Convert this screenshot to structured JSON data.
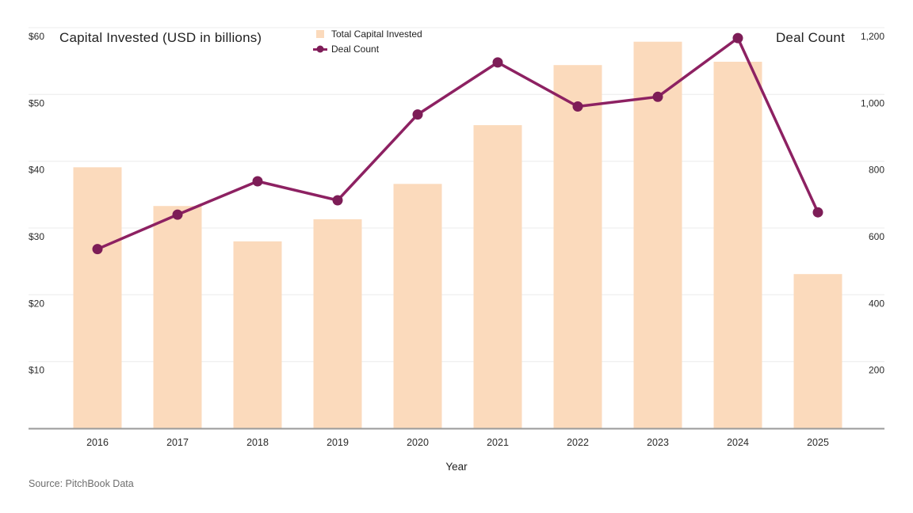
{
  "chart_data": {
    "type": "bar",
    "title": "Capital Invested (USD in billions)",
    "right_axis_title": "Deal Count",
    "xlabel": "Year",
    "source": "Source: PitchBook Data",
    "categories": [
      "2016",
      "2017",
      "2018",
      "2019",
      "2020",
      "2021",
      "2022",
      "2023",
      "2024",
      "2025"
    ],
    "series": [
      {
        "name": "Total Capital Invested",
        "type": "bar",
        "axis": "left",
        "color": "#fbdabc",
        "values": [
          39.1,
          33.3,
          28.0,
          31.3,
          36.6,
          45.4,
          54.4,
          57.9,
          54.9,
          23.1
        ]
      },
      {
        "name": "Deal Count",
        "type": "line",
        "axis": "right",
        "color": "#8d2162",
        "point_color": "#7d1d57",
        "values": [
          537,
          640,
          740,
          683,
          940,
          1096,
          964,
          993,
          1169,
          647
        ]
      }
    ],
    "left_axis": {
      "min": 0,
      "max": 60,
      "tick_values": [
        10,
        20,
        30,
        40,
        50,
        60
      ],
      "tick_labels": [
        "$10",
        "$20",
        "$30",
        "$40",
        "$50",
        "$60"
      ]
    },
    "right_axis": {
      "min": 0,
      "max": 1200,
      "tick_values": [
        200,
        400,
        600,
        800,
        1000,
        1200
      ],
      "tick_labels": [
        "200",
        "400",
        "600",
        "800",
        "1,000",
        "1,200"
      ]
    },
    "grid": "horizontal",
    "legend_position": "top-center",
    "colors": {
      "gridline": "#ececec",
      "axis_line": "#9a9a9a",
      "tick_text": "#2b2b2b",
      "background": "#ffffff"
    }
  }
}
